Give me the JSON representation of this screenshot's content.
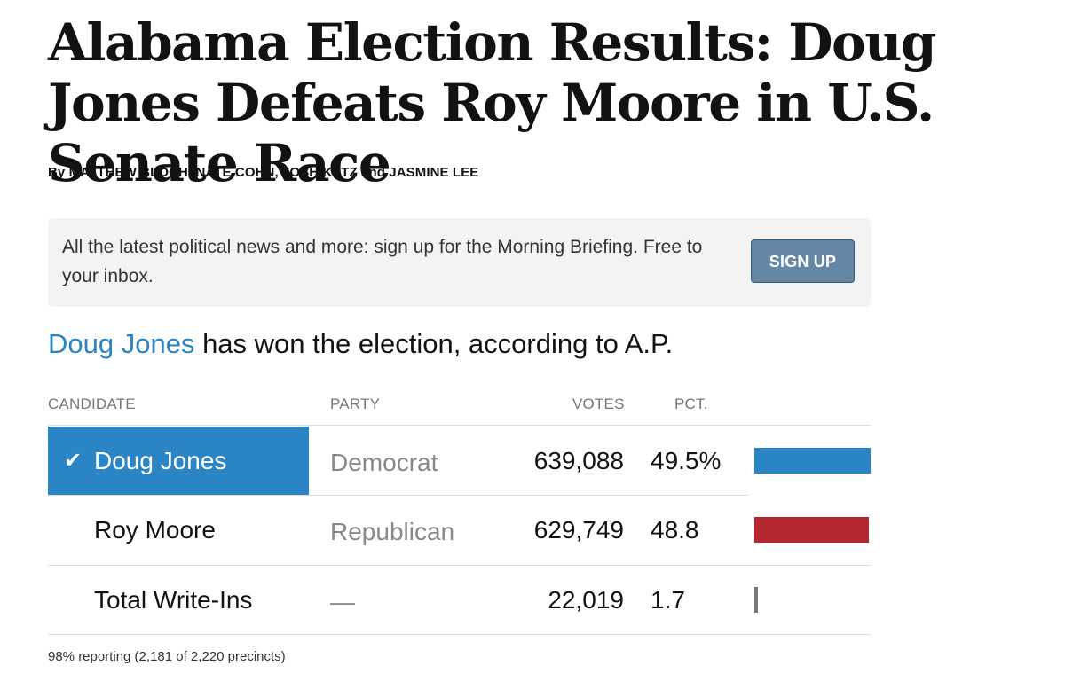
{
  "article": {
    "headline": "Alabama Election Results: Doug Jones Defeats Roy Moore in U.S. Senate Race",
    "byline": "By MATTHEW BLOCH, NATE COHN, JOSH KATZ and JASMINE LEE"
  },
  "promo": {
    "text": "All the latest political news and more: sign up for the Morning Briefing. Free to your inbox.",
    "button_label": "SIGN UP"
  },
  "result": {
    "winner_name": "Doug Jones",
    "winner_suffix": " has won the election, according to A.P."
  },
  "table": {
    "headers": {
      "candidate": "CANDIDATE",
      "party": "PARTY",
      "votes": "VOTES",
      "pct": "PCT."
    },
    "rows": [
      {
        "candidate": "Doug Jones",
        "party": "Democrat",
        "votes": "639,088",
        "pct": "49.5%",
        "winner": true,
        "bar_pct": 49.5,
        "bar_color": "#2b85c4"
      },
      {
        "candidate": "Roy Moore",
        "party": "Republican",
        "votes": "629,749",
        "pct": "48.8",
        "winner": false,
        "bar_pct": 48.8,
        "bar_color": "#b6262e"
      },
      {
        "candidate": "Total Write-Ins",
        "party": "—",
        "votes": "22,019",
        "pct": "1.7",
        "winner": false,
        "bar_pct": 1.7,
        "bar_color": "#777777"
      }
    ],
    "check_icon": "check-icon"
  },
  "footnote": "98% reporting (2,181 of 2,220 precincts)",
  "colors": {
    "democrat": "#2b85c4",
    "republican": "#b6262e",
    "signup_button": "#6587a6"
  }
}
